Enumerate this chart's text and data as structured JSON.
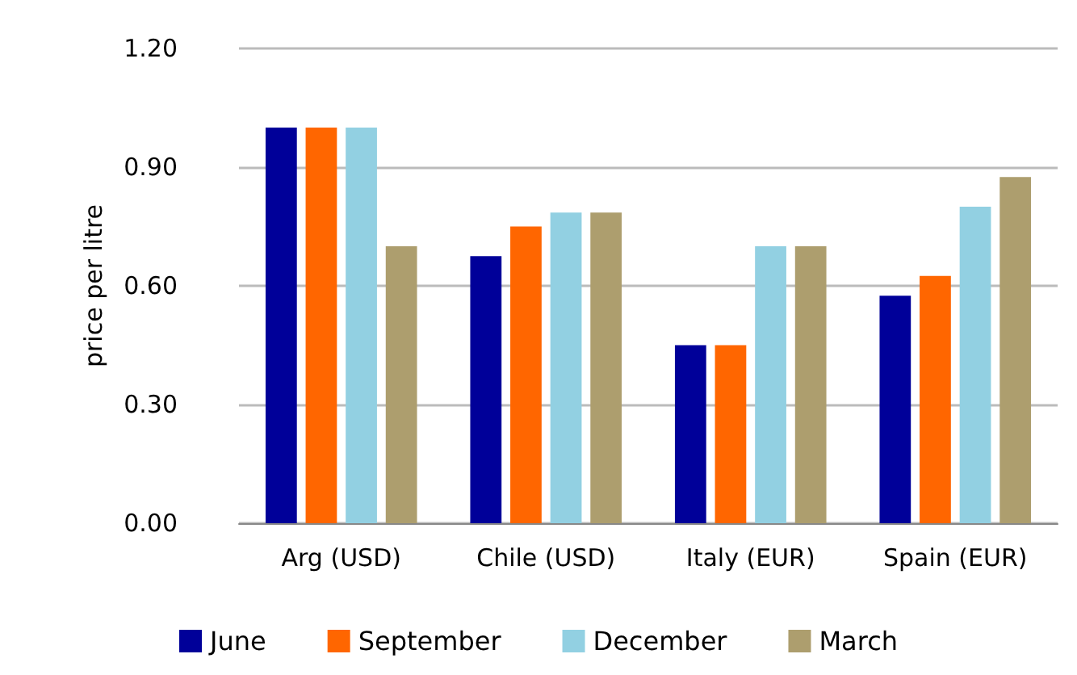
{
  "chart_data": {
    "type": "bar",
    "ylabel": "price per litre",
    "categories": [
      "Arg (USD)",
      "Chile (USD)",
      "Italy (EUR)",
      "Spain (EUR)"
    ],
    "series": [
      {
        "name": "June",
        "color": "#000099",
        "values": [
          1.0,
          0.675,
          0.45,
          0.575
        ]
      },
      {
        "name": "September",
        "color": "#ff6600",
        "values": [
          1.0,
          0.75,
          0.45,
          0.625
        ]
      },
      {
        "name": "December",
        "color": "#92d0e2",
        "values": [
          1.0,
          0.785,
          0.7,
          0.8
        ]
      },
      {
        "name": "March",
        "color": "#ad9e6e",
        "values": [
          0.7,
          0.785,
          0.7,
          0.875
        ]
      }
    ],
    "ylim": [
      0,
      1.2
    ],
    "yticks": [
      {
        "value": 0,
        "label": "0.00"
      },
      {
        "value": 0.3,
        "label": "0.30"
      },
      {
        "value": 0.6,
        "label": "0.60"
      },
      {
        "value": 0.9,
        "label": "0.90"
      },
      {
        "value": 1.2,
        "label": "1.20"
      }
    ],
    "grid": "y",
    "legend": "bottom"
  }
}
